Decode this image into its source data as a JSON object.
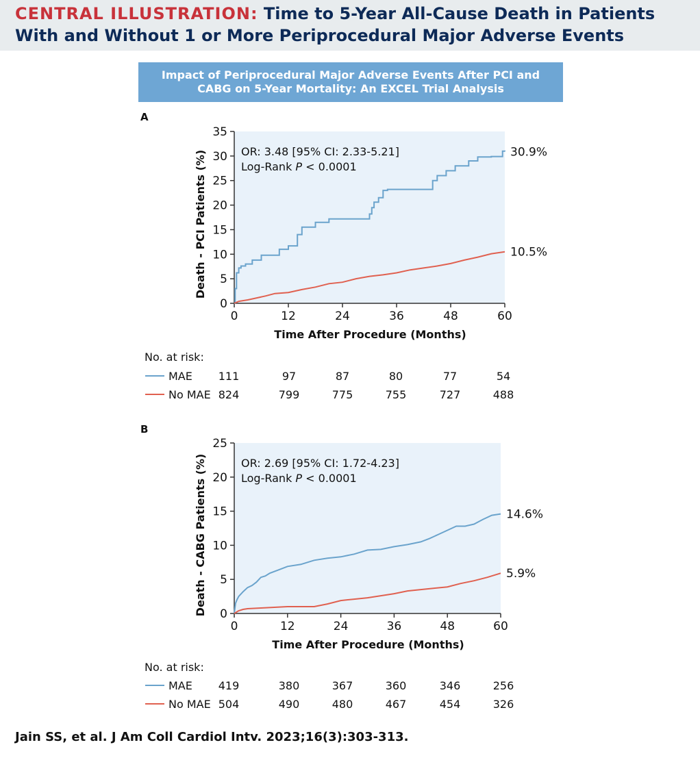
{
  "header": {
    "lead": "CENTRAL ILLUSTRATION:",
    "title": "Time to 5-Year All-Cause Death in Patients With and Without 1 or More Periprocedural Major Adverse Events"
  },
  "banner": "Impact of Periprocedural Major Adverse Events After PCI and CABG on 5-Year Mortality: An EXCEL Trial Analysis",
  "citation": "Jain SS, et al. J Am Coll Cardiol Intv. 2023;16(3):303-313.",
  "colors": {
    "mae": "#6aa3cc",
    "no_mae": "#e0604f",
    "plot_bg": "#e9f2fa",
    "header_bg": "#e8ecee",
    "banner_bg": "#6ea6d4"
  },
  "chart_data": [
    {
      "panel": "A",
      "type": "line",
      "xlabel": "Time After Procedure (Months)",
      "ylabel": "Death - PCI Patients (%)",
      "xlim": [
        0,
        60
      ],
      "ylim": [
        0,
        35
      ],
      "xticks": [
        0,
        12,
        24,
        36,
        48,
        60
      ],
      "yticks": [
        0,
        5,
        10,
        15,
        20,
        25,
        30,
        35
      ],
      "annotation_or": "OR: 3.48 [95% CI: 2.33-5.21]",
      "annotation_p_prefix": "Log-Rank ",
      "annotation_p_italic": "P",
      "annotation_p_suffix": " < 0.0001",
      "series": [
        {
          "name": "MAE",
          "end_label": "30.9%",
          "step": true,
          "x": [
            0,
            0.2,
            0.5,
            1,
            1.5,
            2.5,
            4,
            6,
            10,
            12,
            14,
            15,
            18,
            21,
            24,
            25,
            27,
            29,
            30,
            30.5,
            31,
            32,
            33,
            34,
            44,
            45,
            47,
            49,
            50,
            52,
            54,
            57,
            59.5,
            60
          ],
          "y": [
            0,
            3,
            6.2,
            7.2,
            7.6,
            8,
            8.8,
            9.8,
            11,
            11.7,
            14,
            15.5,
            16.5,
            17.2,
            17.2,
            17.2,
            17.2,
            17.2,
            18.2,
            19.5,
            20.6,
            21.5,
            23,
            23.2,
            25,
            26,
            27,
            28,
            28,
            29,
            29.8,
            29.9,
            31,
            30.9
          ]
        },
        {
          "name": "No MAE",
          "end_label": "10.5%",
          "step": false,
          "x": [
            0,
            1,
            3,
            5,
            7,
            9,
            12,
            15,
            18,
            21,
            24,
            27,
            30,
            33,
            36,
            39,
            42,
            45,
            48,
            51,
            54,
            57,
            60
          ],
          "y": [
            0,
            0.4,
            0.7,
            1.1,
            1.5,
            2,
            2.2,
            2.8,
            3.3,
            4,
            4.3,
            5,
            5.5,
            5.8,
            6.2,
            6.8,
            7.2,
            7.6,
            8.1,
            8.8,
            9.4,
            10.1,
            10.5
          ]
        }
      ],
      "risk_table": {
        "label": "No. at risk:",
        "rows": [
          {
            "name": "MAE",
            "values": [
              111,
              97,
              87,
              80,
              77,
              54
            ]
          },
          {
            "name": "No MAE",
            "values": [
              824,
              799,
              775,
              755,
              727,
              488
            ]
          }
        ]
      }
    },
    {
      "panel": "B",
      "type": "line",
      "xlabel": "Time After Procedure (Months)",
      "ylabel": "Death - CABG Patients (%)",
      "xlim": [
        0,
        60
      ],
      "ylim": [
        0,
        25
      ],
      "xticks": [
        0,
        12,
        24,
        36,
        48,
        60
      ],
      "yticks": [
        0,
        5,
        10,
        15,
        20,
        25
      ],
      "annotation_or": "OR: 2.69 [95% CI: 1.72-4.23]",
      "annotation_p_prefix": "Log-Rank ",
      "annotation_p_italic": "P",
      "annotation_p_suffix": " < 0.0001",
      "series": [
        {
          "name": "MAE",
          "end_label": "14.6%",
          "step": false,
          "x": [
            0,
            0.3,
            0.6,
            1,
            2,
            3,
            4,
            5,
            6,
            7,
            8,
            10,
            12,
            15,
            18,
            21,
            24,
            27,
            30,
            33,
            36,
            39,
            42,
            44,
            46,
            48,
            50,
            52,
            54,
            56,
            58,
            60
          ],
          "y": [
            0,
            1.5,
            2,
            2.5,
            3.2,
            3.8,
            4.1,
            4.6,
            5.3,
            5.5,
            5.9,
            6.4,
            6.9,
            7.2,
            7.8,
            8.1,
            8.3,
            8.7,
            9.3,
            9.4,
            9.8,
            10.1,
            10.5,
            11,
            11.6,
            12.2,
            12.8,
            12.8,
            13.1,
            13.8,
            14.4,
            14.6
          ]
        },
        {
          "name": "No MAE",
          "end_label": "5.9%",
          "step": false,
          "x": [
            0,
            0.5,
            1,
            2,
            3,
            6,
            9,
            12,
            15,
            18,
            21,
            24,
            27,
            30,
            33,
            36,
            39,
            42,
            45,
            48,
            51,
            54,
            57,
            60
          ],
          "y": [
            0,
            0.2,
            0.4,
            0.6,
            0.7,
            0.8,
            0.9,
            1,
            1,
            1,
            1.4,
            1.9,
            2.1,
            2.3,
            2.6,
            2.9,
            3.3,
            3.5,
            3.7,
            3.9,
            4.4,
            4.8,
            5.3,
            5.9
          ]
        }
      ],
      "risk_table": {
        "label": "No. at risk:",
        "rows": [
          {
            "name": "MAE",
            "values": [
              419,
              380,
              367,
              360,
              346,
              256
            ]
          },
          {
            "name": "No MAE",
            "values": [
              504,
              490,
              480,
              467,
              454,
              326
            ]
          }
        ]
      }
    }
  ]
}
